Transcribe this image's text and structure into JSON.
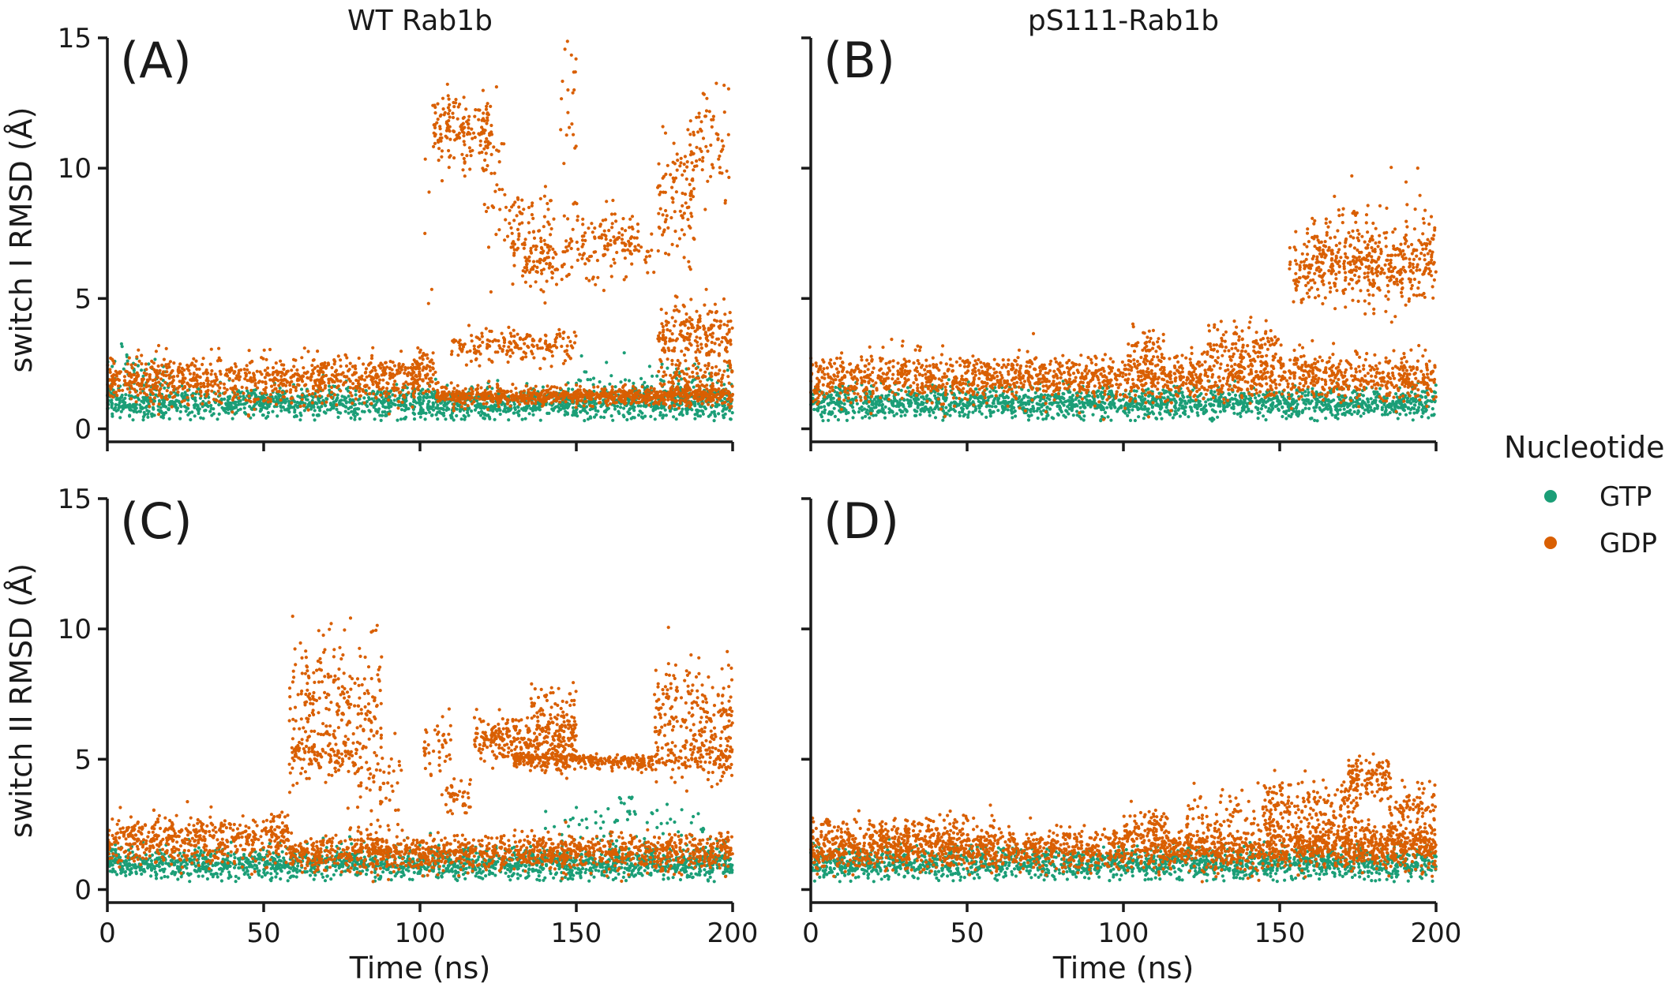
{
  "figure": {
    "column_titles": [
      "WT Rab1b",
      "pS111-Rab1b"
    ],
    "legend": {
      "title": "Nucleotide",
      "items": [
        {
          "label": "GTP",
          "color": "#1b9e77"
        },
        {
          "label": "GDP",
          "color": "#d95f02"
        }
      ]
    }
  },
  "chart_data": [
    {
      "type": "scatter",
      "panel_label": "(A)",
      "column_title": "WT Rab1b",
      "xlabel": "",
      "ylabel": "switch I RMSD (Å)",
      "xlim": [
        0,
        200
      ],
      "ylim": [
        -0.5,
        15
      ],
      "xticks": [
        0,
        50,
        100,
        150,
        200
      ],
      "yticks": [
        0,
        5,
        10,
        15
      ],
      "series": [
        {
          "name": "GTP",
          "color": "#1b9e77",
          "segments": [
            {
              "x": [
                0,
                200
              ],
              "mean": 1.0,
              "spread": 0.3
            },
            {
              "x": [
                0,
                20
              ],
              "mean": 2.0,
              "spread": 0.5,
              "density": 0.3
            },
            {
              "x": [
                150,
                200
              ],
              "mean": 1.6,
              "spread": 0.5,
              "density": 0.25
            }
          ]
        },
        {
          "name": "GDP",
          "color": "#d95f02",
          "segments": [
            {
              "x": [
                0,
                100
              ],
              "mean": 1.9,
              "spread": 0.45
            },
            {
              "x": [
                97,
                105
              ],
              "mean": 2.3,
              "spread": 0.4
            },
            {
              "x": [
                105,
                200
              ],
              "mean": 1.25,
              "spread": 0.18
            },
            {
              "x": [
                101,
                104
              ],
              "mean": 6.5,
              "spread": 2.5,
              "density": 0.2
            },
            {
              "x": [
                104,
                123
              ],
              "mean": 11.5,
              "spread": 0.6
            },
            {
              "x": [
                120,
                127
              ],
              "mean": 9.5,
              "spread": 1.6,
              "density": 0.5
            },
            {
              "x": [
                110,
                150
              ],
              "mean": 3.2,
              "spread": 0.3,
              "density": 0.5
            },
            {
              "x": [
                127,
                143
              ],
              "mean": 7.6,
              "spread": 0.9,
              "density": 0.6
            },
            {
              "x": [
                133,
                146
              ],
              "mean": 6.4,
              "spread": 0.35,
              "density": 0.6
            },
            {
              "x": [
                145,
                150
              ],
              "mean": 12.5,
              "spread": 1.3,
              "density": 0.45
            },
            {
              "x": [
                146,
                153
              ],
              "mean": 7.2,
              "spread": 0.8,
              "density": 0.5
            },
            {
              "x": [
                152,
                170
              ],
              "mean": 7.2,
              "spread": 0.6,
              "density": 0.7
            },
            {
              "x": [
                170,
                175
              ],
              "mean": 6.5,
              "spread": 0.6,
              "density": 0.25
            },
            {
              "x": [
                176,
                188
              ],
              "mean": 8.8,
              "spread": 1.3
            },
            {
              "x": [
                186,
                200
              ],
              "mean": 11.0,
              "spread": 1.2,
              "density": 0.5
            },
            {
              "x": [
                176,
                200
              ],
              "mean": 3.6,
              "spread": 0.6
            },
            {
              "x": [
                176,
                200
              ],
              "mean": 1.8,
              "spread": 0.4,
              "density": 0.5
            }
          ]
        }
      ]
    },
    {
      "type": "scatter",
      "panel_label": "(B)",
      "column_title": "pS111-Rab1b",
      "xlabel": "",
      "ylabel": "",
      "xlim": [
        0,
        200
      ],
      "ylim": [
        -0.5,
        15
      ],
      "xticks": [
        0,
        50,
        100,
        150,
        200
      ],
      "yticks": [
        0,
        5,
        10,
        15
      ],
      "series": [
        {
          "name": "GTP",
          "color": "#1b9e77",
          "segments": [
            {
              "x": [
                0,
                200
              ],
              "mean": 1.0,
              "spread": 0.3
            }
          ]
        },
        {
          "name": "GDP",
          "color": "#d95f02",
          "segments": [
            {
              "x": [
                0,
                200
              ],
              "mean": 1.95,
              "spread": 0.45
            },
            {
              "x": [
                103,
                113
              ],
              "mean": 2.9,
              "spread": 0.4,
              "density": 0.6
            },
            {
              "x": [
                125,
                150
              ],
              "mean": 3.2,
              "spread": 0.4,
              "density": 0.5
            },
            {
              "x": [
                153,
                200
              ],
              "mean": 6.2,
              "spread": 0.7
            },
            {
              "x": [
                160,
                200
              ],
              "mean": 7.2,
              "spread": 1.0,
              "density": 0.3
            }
          ]
        }
      ]
    },
    {
      "type": "scatter",
      "panel_label": "(C)",
      "column_title": "",
      "xlabel": "Time (ns)",
      "ylabel": "switch II RMSD (Å)",
      "xlim": [
        0,
        200
      ],
      "ylim": [
        -0.5,
        15
      ],
      "xticks": [
        0,
        50,
        100,
        150,
        200
      ],
      "yticks": [
        0,
        5,
        10,
        15
      ],
      "series": [
        {
          "name": "GTP",
          "color": "#1b9e77",
          "segments": [
            {
              "x": [
                0,
                200
              ],
              "mean": 1.0,
              "spread": 0.3
            },
            {
              "x": [
                140,
                200
              ],
              "mean": 2.4,
              "spread": 0.45,
              "density": 0.12
            },
            {
              "x": [
                162,
                170
              ],
              "mean": 3.5,
              "spread": 0.25,
              "density": 0.12
            }
          ]
        },
        {
          "name": "GDP",
          "color": "#d95f02",
          "segments": [
            {
              "x": [
                0,
                58
              ],
              "mean": 1.9,
              "spread": 0.45
            },
            {
              "x": [
                55,
                58
              ],
              "mean": 2.6,
              "spread": 0.3,
              "density": 0.4
            },
            {
              "x": [
                58,
                200
              ],
              "mean": 1.4,
              "spread": 0.35
            },
            {
              "x": [
                58,
                88
              ],
              "mean": 7.0,
              "spread": 1.3
            },
            {
              "x": [
                58,
                80
              ],
              "mean": 5.1,
              "spread": 0.3,
              "density": 0.5
            },
            {
              "x": [
                80,
                95
              ],
              "mean": 3.5,
              "spread": 1.2,
              "density": 0.5
            },
            {
              "x": [
                101,
                110
              ],
              "mean": 5.5,
              "spread": 0.7,
              "density": 0.5
            },
            {
              "x": [
                108,
                117
              ],
              "mean": 3.6,
              "spread": 0.3,
              "density": 0.5
            },
            {
              "x": [
                117,
                150
              ],
              "mean": 5.8,
              "spread": 0.45
            },
            {
              "x": [
                130,
                150
              ],
              "mean": 5.0,
              "spread": 0.2
            },
            {
              "x": [
                135,
                150
              ],
              "mean": 7.0,
              "spread": 0.5,
              "density": 0.4
            },
            {
              "x": [
                150,
                175
              ],
              "mean": 4.9,
              "spread": 0.15,
              "density": 0.7
            },
            {
              "x": [
                175,
                200
              ],
              "mean": 6.7,
              "spread": 1.1
            },
            {
              "x": [
                175,
                200
              ],
              "mean": 5.0,
              "spread": 0.3,
              "density": 0.5
            }
          ]
        }
      ]
    },
    {
      "type": "scatter",
      "panel_label": "(D)",
      "column_title": "",
      "xlabel": "Time (ns)",
      "ylabel": "",
      "xlim": [
        0,
        200
      ],
      "ylim": [
        -0.5,
        15
      ],
      "xticks": [
        0,
        50,
        100,
        150,
        200
      ],
      "yticks": [
        0,
        5,
        10,
        15
      ],
      "series": [
        {
          "name": "GTP",
          "color": "#1b9e77",
          "segments": [
            {
              "x": [
                0,
                200
              ],
              "mean": 1.0,
              "spread": 0.3
            }
          ]
        },
        {
          "name": "GDP",
          "color": "#d95f02",
          "segments": [
            {
              "x": [
                0,
                200
              ],
              "mean": 1.5,
              "spread": 0.4
            },
            {
              "x": [
                0,
                60
              ],
              "mean": 2.1,
              "spread": 0.4,
              "density": 0.5
            },
            {
              "x": [
                100,
                115
              ],
              "mean": 2.4,
              "spread": 0.4,
              "density": 0.6
            },
            {
              "x": [
                120,
                150
              ],
              "mean": 2.6,
              "spread": 0.6,
              "density": 0.4
            },
            {
              "x": [
                145,
                175
              ],
              "mean": 3.2,
              "spread": 0.5,
              "density": 0.6
            },
            {
              "x": [
                155,
                200
              ],
              "mean": 2.0,
              "spread": 0.4,
              "density": 0.6
            },
            {
              "x": [
                172,
                185
              ],
              "mean": 4.3,
              "spread": 0.35
            },
            {
              "x": [
                185,
                200
              ],
              "mean": 3.2,
              "spread": 0.4,
              "density": 0.6
            }
          ]
        }
      ]
    }
  ]
}
